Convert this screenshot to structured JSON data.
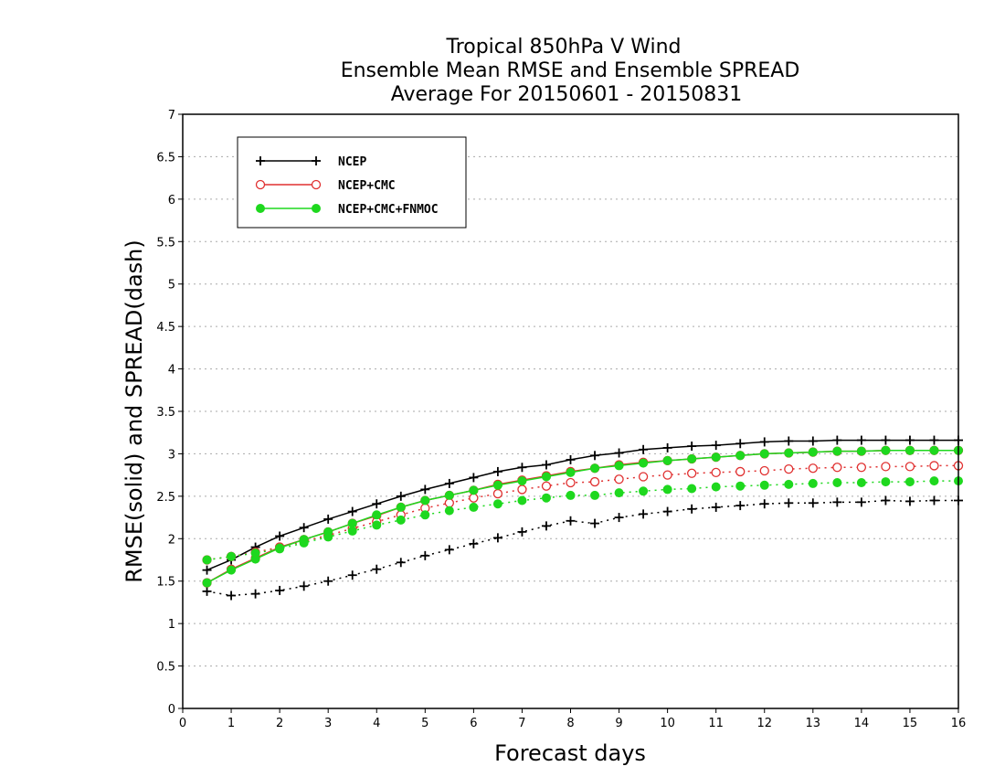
{
  "chart_data": {
    "type": "line",
    "title": [
      "Tropical 850hPa V Wind",
      "Ensemble Mean RMSE and Ensemble SPREAD",
      "Average For 20150601 - 20150831"
    ],
    "xlabel": "Forecast days",
    "ylabel": "RMSE(solid) and SPREAD(dash)",
    "xlim": [
      0,
      16
    ],
    "ylim": [
      0,
      7
    ],
    "xticks": [
      "0",
      "1",
      "2",
      "3",
      "4",
      "5",
      "6",
      "7",
      "8",
      "9",
      "10",
      "11",
      "12",
      "13",
      "14",
      "15",
      "16"
    ],
    "yticks": [
      "0",
      "0.5",
      "1",
      "1.5",
      "2",
      "2.5",
      "3",
      "3.5",
      "4",
      "4.5",
      "5",
      "5.5",
      "6",
      "6.5",
      "7"
    ],
    "grid": "horizontal dotted",
    "legend_position": "top-left",
    "x": [
      0.5,
      1,
      1.5,
      2,
      2.5,
      3,
      3.5,
      4,
      4.5,
      5,
      5.5,
      6,
      6.5,
      7,
      7.5,
      8,
      8.5,
      9,
      9.5,
      10,
      10.5,
      11,
      11.5,
      12,
      12.5,
      13,
      13.5,
      14,
      14.5,
      15,
      15.5,
      16
    ],
    "series": [
      {
        "name": "NCEP",
        "color": "#000000",
        "marker": "plus",
        "style": "solid",
        "values": [
          1.63,
          1.75,
          1.9,
          2.03,
          2.13,
          2.23,
          2.32,
          2.41,
          2.5,
          2.58,
          2.65,
          2.72,
          2.79,
          2.84,
          2.87,
          2.93,
          2.98,
          3.01,
          3.05,
          3.07,
          3.09,
          3.1,
          3.12,
          3.14,
          3.15,
          3.15,
          3.16,
          3.16,
          3.16,
          3.16,
          3.16,
          3.16
        ]
      },
      {
        "name": "",
        "color": "#000000",
        "marker": "plus",
        "style": "dash",
        "values": [
          1.38,
          1.33,
          1.35,
          1.39,
          1.44,
          1.5,
          1.57,
          1.64,
          1.72,
          1.8,
          1.87,
          1.94,
          2.01,
          2.08,
          2.15,
          2.21,
          2.18,
          2.25,
          2.29,
          2.32,
          2.35,
          2.37,
          2.39,
          2.41,
          2.42,
          2.42,
          2.43,
          2.43,
          2.45,
          2.44,
          2.45,
          2.45
        ]
      },
      {
        "name": "NCEP+CMC",
        "color": "#e03030",
        "marker": "open-circle",
        "style": "solid",
        "values": [
          1.48,
          1.64,
          1.77,
          1.9,
          1.99,
          2.08,
          2.18,
          2.27,
          2.37,
          2.45,
          2.51,
          2.57,
          2.64,
          2.69,
          2.74,
          2.79,
          2.83,
          2.87,
          2.9,
          2.92,
          2.94,
          2.96,
          2.98,
          3.0,
          3.01,
          3.02,
          3.03,
          3.03,
          3.04,
          3.04,
          3.04,
          3.04
        ]
      },
      {
        "name": "",
        "color": "#e03030",
        "marker": "open-circle",
        "style": "dash",
        "values": [
          1.75,
          1.79,
          1.84,
          1.9,
          1.97,
          2.04,
          2.12,
          2.2,
          2.28,
          2.36,
          2.42,
          2.48,
          2.53,
          2.58,
          2.62,
          2.66,
          2.67,
          2.7,
          2.73,
          2.75,
          2.77,
          2.78,
          2.79,
          2.8,
          2.82,
          2.83,
          2.84,
          2.84,
          2.85,
          2.85,
          2.86,
          2.86
        ]
      },
      {
        "name": "NCEP+CMC+FNMOC",
        "color": "#1ed81e",
        "marker": "filled-circle",
        "style": "solid",
        "values": [
          1.48,
          1.63,
          1.76,
          1.89,
          1.99,
          2.08,
          2.18,
          2.28,
          2.37,
          2.45,
          2.51,
          2.57,
          2.63,
          2.68,
          2.73,
          2.78,
          2.83,
          2.86,
          2.89,
          2.92,
          2.94,
          2.96,
          2.98,
          3.0,
          3.01,
          3.02,
          3.03,
          3.03,
          3.04,
          3.04,
          3.04,
          3.04
        ]
      },
      {
        "name": "",
        "color": "#1ed81e",
        "marker": "filled-circle",
        "style": "dash",
        "values": [
          1.75,
          1.79,
          1.83,
          1.88,
          1.95,
          2.02,
          2.09,
          2.16,
          2.22,
          2.28,
          2.33,
          2.37,
          2.41,
          2.45,
          2.48,
          2.51,
          2.51,
          2.54,
          2.56,
          2.58,
          2.59,
          2.61,
          2.62,
          2.63,
          2.64,
          2.65,
          2.66,
          2.66,
          2.67,
          2.67,
          2.68,
          2.68
        ]
      }
    ]
  }
}
